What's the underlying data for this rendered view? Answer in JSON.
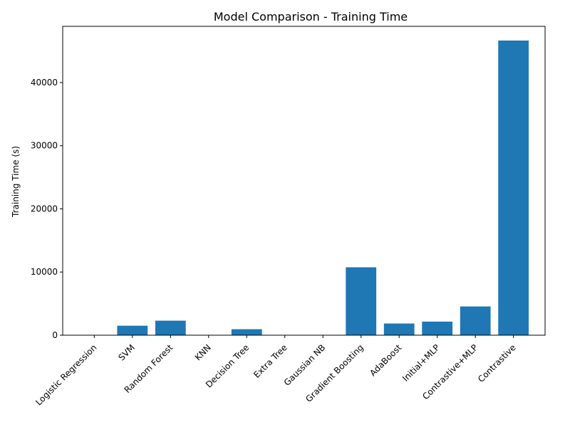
{
  "chart_data": {
    "type": "bar",
    "title": "Model Comparison - Training Time",
    "xlabel": "",
    "ylabel": "Training Time (s)",
    "categories": [
      "Logistic Regression",
      "SVM",
      "Random Forest",
      "KNN",
      "Decision Tree",
      "Extra Tree",
      "Gaussian NB",
      "Gradient Boosting",
      "AdaBoost",
      "Initial+MLP",
      "Contrastive+MLP",
      "Contrastive"
    ],
    "values": [
      20,
      1500,
      2300,
      10,
      950,
      15,
      10,
      10750,
      1850,
      2150,
      4550,
      46650
    ],
    "ylim": [
      0,
      48900
    ],
    "yticks": [
      0,
      10000,
      20000,
      30000,
      40000
    ],
    "ytick_labels": [
      "0",
      "10000",
      "20000",
      "30000",
      "40000"
    ],
    "grid": false,
    "bar_color": "#1f77b4"
  }
}
